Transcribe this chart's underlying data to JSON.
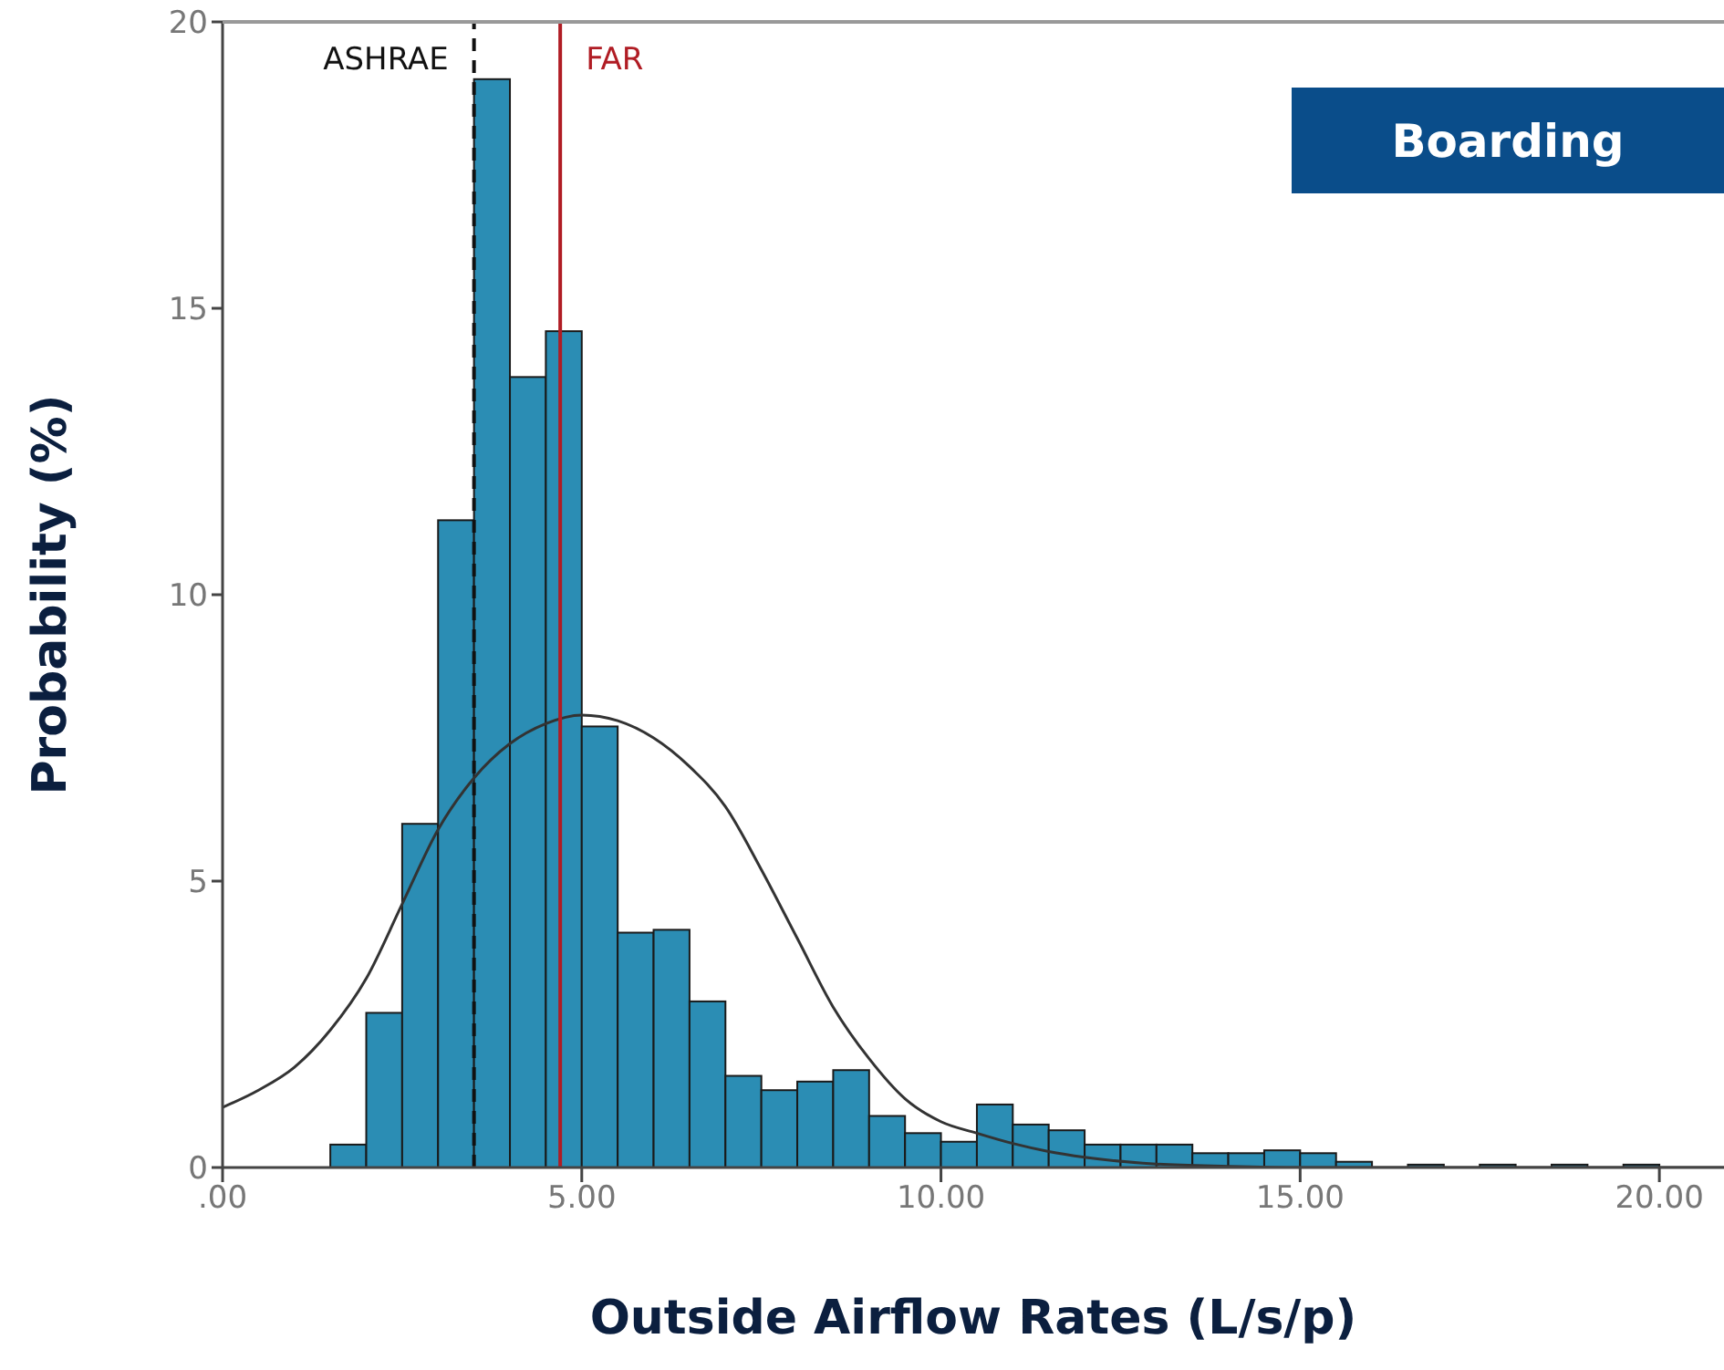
{
  "chart_data": {
    "type": "histogram",
    "xlabel": "Outside Airflow Rates (L/s/p)",
    "ylabel": "Probability (%)",
    "annotations": [
      "Boarding"
    ],
    "series": [
      {
        "color": "#2b8db4",
        "bins": [
          1.5,
          2,
          2.5,
          3,
          3.5,
          4,
          4.5,
          5,
          5.5,
          6,
          6.5,
          7,
          7.5,
          8,
          8.5,
          9,
          9.5,
          10,
          10.5,
          11,
          11.5,
          12,
          12.5,
          13,
          13.5,
          14,
          14.5,
          15,
          15.5,
          16,
          16.5,
          17,
          17.5,
          18,
          18.5,
          19,
          19.5,
          20
        ],
        "values": [
          0.4,
          2.7,
          6.0,
          11.3,
          19.0,
          13.8,
          14.6,
          7.7,
          4.1,
          4.15,
          2.9,
          1.6,
          1.35,
          1.5,
          1.7,
          0.9,
          0.6,
          0.45,
          1.1,
          0.75,
          0.65,
          0.4,
          0.4,
          0.4,
          0.25,
          0.25,
          0.3,
          0.25,
          0.1,
          0,
          0.05,
          0,
          0.05,
          0,
          0.05,
          0,
          0.05
        ]
      },
      {
        "type": "line",
        "color": "#333333",
        "x": [
          0,
          0.5,
          1,
          1.5,
          2,
          2.5,
          3,
          3.5,
          4,
          4.5,
          5,
          5.5,
          6,
          6.5,
          7,
          7.5,
          8,
          8.5,
          9,
          9.5,
          10,
          10.5,
          11,
          11.5,
          12,
          13,
          14,
          15,
          16,
          17,
          18,
          19,
          20,
          20.9
        ],
        "values": [
          1.05,
          1.35,
          1.75,
          2.4,
          3.3,
          4.6,
          5.9,
          6.8,
          7.4,
          7.75,
          7.9,
          7.8,
          7.5,
          7.0,
          6.3,
          5.2,
          4.0,
          2.8,
          1.9,
          1.2,
          0.8,
          0.6,
          0.42,
          0.28,
          0.18,
          0.06,
          0.02,
          0,
          0,
          0,
          0,
          0,
          0,
          0
        ]
      }
    ],
    "xlim": [
      0,
      20.9
    ],
    "xticks": [
      {
        "value": 0,
        "label": ".00"
      },
      {
        "value": 5,
        "label": "5.00"
      },
      {
        "value": 10,
        "label": "10.00"
      },
      {
        "value": 15,
        "label": "15.00"
      },
      {
        "value": 20,
        "label": "20.00"
      }
    ],
    "ylim": [
      0,
      20
    ],
    "yticks": [
      0,
      5,
      10,
      15,
      20
    ],
    "marker": "none",
    "ref_lines": [
      {
        "axis": "x",
        "value": 3.5,
        "label": "ASHRAE",
        "color": "#111111",
        "line_style": "dashed"
      },
      {
        "axis": "x",
        "value": 4.7,
        "label": "FAR",
        "color": "#b01c24",
        "line_style": "solid"
      }
    ]
  }
}
